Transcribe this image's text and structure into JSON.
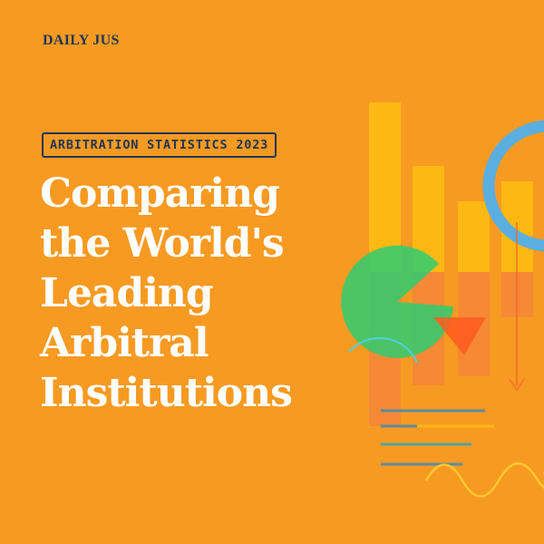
{
  "brand": "DAILY JUS",
  "badge": "ARBITRATION STATISTICS 2023",
  "title_lines": [
    "Comparing",
    "the World's",
    "Leading",
    "Arbitral",
    "Institutions"
  ]
}
